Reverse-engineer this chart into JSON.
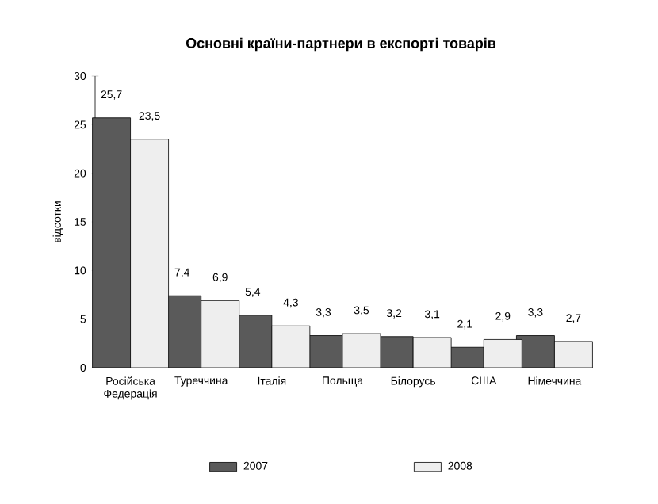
{
  "chart_data": {
    "type": "bar",
    "title": "Основні країни-партнери в експорті товарів",
    "ylabel": "відсотки",
    "categories": [
      "Російська Федерація",
      "Туреччина",
      "Італія",
      "Польща",
      "Білорусь",
      "США",
      "Німеччина"
    ],
    "series": [
      {
        "name": "2007",
        "color": "#5a5a5a",
        "values": [
          25.7,
          7.4,
          5.4,
          3.3,
          3.2,
          2.1,
          3.3
        ],
        "value_labels": [
          "25,7",
          "7,4",
          "5,4",
          "3,3",
          "3,2",
          "2,1",
          "3,3"
        ]
      },
      {
        "name": "2008",
        "color": "#eeeeee",
        "values": [
          23.5,
          6.9,
          4.3,
          3.5,
          3.1,
          2.9,
          2.7
        ],
        "value_labels": [
          "23,5",
          "6,9",
          "4,3",
          "3,5",
          "3,1",
          "2,9",
          "2,7"
        ]
      }
    ],
    "ylim": [
      0,
      30
    ],
    "yticks": [
      0,
      5,
      10,
      15,
      20,
      25,
      30
    ],
    "grid": false,
    "legend": "bottom"
  }
}
